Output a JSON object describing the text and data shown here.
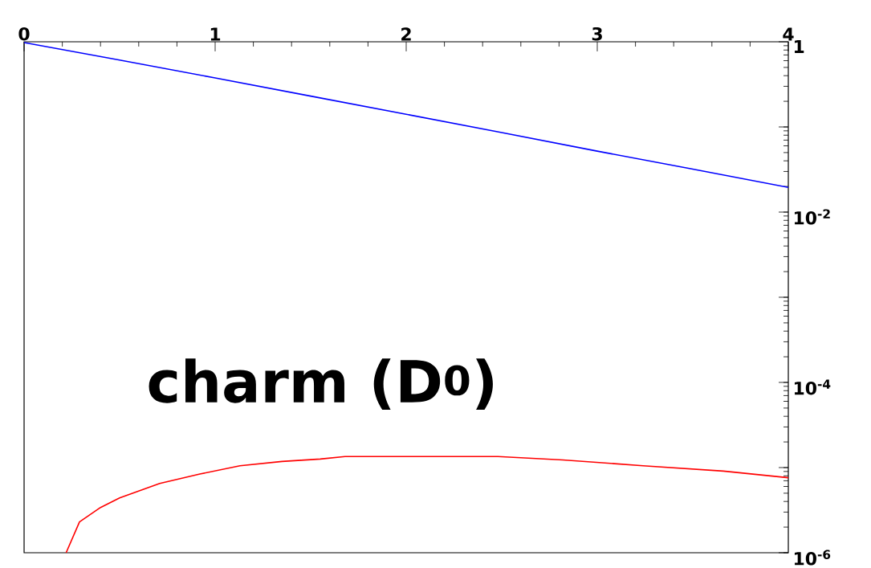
{
  "chart_data": {
    "type": "line",
    "log": "y",
    "grid": false,
    "marker": "none",
    "line_style": "solid",
    "xlim": [
      0,
      4
    ],
    "xticks": [
      0,
      1,
      2,
      3,
      4
    ],
    "ylim": [
      1e-06,
      1
    ],
    "yticks": [
      {
        "value": 1e-06,
        "label": "10$^{-6}$"
      },
      {
        "value": 1e-05,
        "label": null
      },
      {
        "value": 0.0001,
        "label": "10$^{-4}$"
      },
      {
        "value": 0.001,
        "label": null
      },
      {
        "value": 0.01,
        "label": "10$^{-2}$"
      },
      {
        "value": 0.1,
        "label": null
      },
      {
        "value": 1,
        "label": "1"
      }
    ],
    "annotations": [
      "charm (D$^{0}$)"
    ],
    "series": [
      {
        "color": "#0000ff",
        "x": [
          0,
          0.5,
          1,
          1.5,
          2,
          2.5,
          3,
          3.5,
          4
        ],
        "values": [
          0.98,
          0.61,
          0.376,
          0.23,
          0.141,
          0.086,
          0.052,
          0.032,
          0.0195
        ]
      },
      {
        "color": "#ff0000",
        "x": [
          0.22,
          0.29,
          0.4,
          0.5,
          0.71,
          0.92,
          1.13,
          1.35,
          1.55,
          1.68,
          2.0,
          2.48,
          2.82,
          3.24,
          3.66,
          4
        ],
        "values": [
          1e-06,
          2.3e-06,
          3.4e-06,
          4.4e-06,
          6.5e-06,
          8.4e-06,
          1.05e-05,
          1.18e-05,
          1.26e-05,
          1.35e-05,
          1.35e-05,
          1.35e-05,
          1.23e-05,
          1.05e-05,
          9.1e-06,
          7.6e-06
        ]
      }
    ]
  }
}
